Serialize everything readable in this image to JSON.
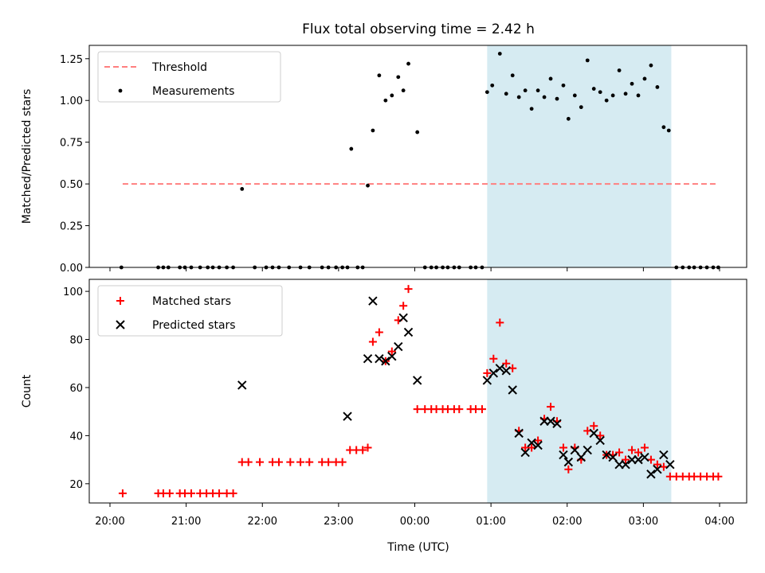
{
  "title": "Flux total observing time = 2.42 h",
  "xlabel": "Time (UTC)",
  "x_ticks": [
    "20:00",
    "21:00",
    "22:00",
    "23:00",
    "00:00",
    "01:00",
    "02:00",
    "03:00",
    "04:00"
  ],
  "colors": {
    "threshold": "#ff7f7f",
    "measurements": "#000000",
    "matched": "#ff0000",
    "predicted": "#000000",
    "shade": "#add8e6"
  },
  "chart_data": [
    {
      "type": "scatter",
      "ylabel": "Matched/Predicted stars",
      "ylim": [
        0,
        1.33
      ],
      "yticks": [
        "0.00",
        "0.25",
        "0.50",
        "0.75",
        "1.00",
        "1.25"
      ],
      "shaded_interval": [
        "00:57",
        "03:22"
      ],
      "legend": {
        "placement": "upper-left",
        "entries": [
          "Threshold",
          "Measurements"
        ]
      },
      "threshold": {
        "name": "Threshold",
        "value": 0.5,
        "x_range": [
          "20:10",
          "03:59"
        ]
      },
      "series": [
        {
          "name": "Measurements",
          "points": [
            [
              "20:09",
              0
            ],
            [
              "20:38",
              0
            ],
            [
              "20:42",
              0
            ],
            [
              "20:46",
              0
            ],
            [
              "20:55",
              0
            ],
            [
              "20:59",
              0
            ],
            [
              "21:04",
              0
            ],
            [
              "21:11",
              0
            ],
            [
              "21:17",
              0
            ],
            [
              "21:21",
              0
            ],
            [
              "21:26",
              0
            ],
            [
              "21:32",
              0
            ],
            [
              "21:37",
              0
            ],
            [
              "21:44",
              0.47
            ],
            [
              "21:54",
              0
            ],
            [
              "22:03",
              0
            ],
            [
              "22:08",
              0
            ],
            [
              "22:13",
              0
            ],
            [
              "22:21",
              0
            ],
            [
              "22:30",
              0
            ],
            [
              "22:37",
              0
            ],
            [
              "22:47",
              0
            ],
            [
              "22:52",
              0
            ],
            [
              "22:58",
              0
            ],
            [
              "23:03",
              0
            ],
            [
              "23:07",
              0
            ],
            [
              "23:10",
              0.71
            ],
            [
              "23:15",
              0
            ],
            [
              "23:19",
              0
            ],
            [
              "23:23",
              0.49
            ],
            [
              "23:27",
              0.82
            ],
            [
              "23:32",
              1.15
            ],
            [
              "23:37",
              1.0
            ],
            [
              "23:42",
              1.03
            ],
            [
              "23:47",
              1.14
            ],
            [
              "23:51",
              1.06
            ],
            [
              "23:55",
              1.22
            ],
            [
              "00:02",
              0.81
            ],
            [
              "00:08",
              0
            ],
            [
              "00:13",
              0
            ],
            [
              "00:17",
              0
            ],
            [
              "00:22",
              0
            ],
            [
              "00:26",
              0
            ],
            [
              "00:31",
              0
            ],
            [
              "00:35",
              0
            ],
            [
              "00:44",
              0
            ],
            [
              "00:48",
              0
            ],
            [
              "00:53",
              0
            ],
            [
              "00:57",
              1.05
            ],
            [
              "01:01",
              1.09
            ],
            [
              "01:07",
              1.28
            ],
            [
              "01:12",
              1.04
            ],
            [
              "01:17",
              1.15
            ],
            [
              "01:22",
              1.02
            ],
            [
              "01:27",
              1.06
            ],
            [
              "01:32",
              0.95
            ],
            [
              "01:37",
              1.06
            ],
            [
              "01:42",
              1.02
            ],
            [
              "01:47",
              1.13
            ],
            [
              "01:52",
              1.01
            ],
            [
              "01:57",
              1.09
            ],
            [
              "02:01",
              0.89
            ],
            [
              "02:06",
              1.03
            ],
            [
              "02:11",
              0.96
            ],
            [
              "02:16",
              1.24
            ],
            [
              "02:21",
              1.07
            ],
            [
              "02:26",
              1.05
            ],
            [
              "02:31",
              1.0
            ],
            [
              "02:36",
              1.03
            ],
            [
              "02:41",
              1.18
            ],
            [
              "02:46",
              1.04
            ],
            [
              "02:51",
              1.1
            ],
            [
              "02:56",
              1.03
            ],
            [
              "03:01",
              1.13
            ],
            [
              "03:06",
              1.21
            ],
            [
              "03:11",
              1.08
            ],
            [
              "03:16",
              0.84
            ],
            [
              "03:20",
              0.82
            ],
            [
              "03:26",
              0
            ],
            [
              "03:31",
              0
            ],
            [
              "03:36",
              0
            ],
            [
              "03:40",
              0
            ],
            [
              "03:45",
              0
            ],
            [
              "03:50",
              0
            ],
            [
              "03:55",
              0
            ],
            [
              "03:59",
              0
            ]
          ]
        }
      ]
    },
    {
      "type": "scatter",
      "ylabel": "Count",
      "ylim": [
        12,
        105
      ],
      "yticks": [
        "20",
        "40",
        "60",
        "80",
        "100"
      ],
      "shaded_interval": [
        "00:57",
        "03:22"
      ],
      "legend": {
        "placement": "upper-left",
        "entries": [
          "Matched stars",
          "Predicted stars"
        ]
      },
      "series": [
        {
          "name": "Matched stars",
          "marker": "plus",
          "points": [
            [
              "20:10",
              16
            ],
            [
              "20:38",
              16
            ],
            [
              "20:42",
              16
            ],
            [
              "20:47",
              16
            ],
            [
              "20:55",
              16
            ],
            [
              "20:59",
              16
            ],
            [
              "21:04",
              16
            ],
            [
              "21:11",
              16
            ],
            [
              "21:16",
              16
            ],
            [
              "21:21",
              16
            ],
            [
              "21:26",
              16
            ],
            [
              "21:32",
              16
            ],
            [
              "21:37",
              16
            ],
            [
              "21:44",
              29
            ],
            [
              "21:49",
              29
            ],
            [
              "21:58",
              29
            ],
            [
              "22:08",
              29
            ],
            [
              "22:13",
              29
            ],
            [
              "22:22",
              29
            ],
            [
              "22:30",
              29
            ],
            [
              "22:37",
              29
            ],
            [
              "22:47",
              29
            ],
            [
              "22:52",
              29
            ],
            [
              "22:58",
              29
            ],
            [
              "23:03",
              29
            ],
            [
              "23:09",
              34
            ],
            [
              "23:14",
              34
            ],
            [
              "23:19",
              34
            ],
            [
              "23:23",
              35
            ],
            [
              "23:27",
              79
            ],
            [
              "23:32",
              83
            ],
            [
              "23:37",
              71
            ],
            [
              "23:42",
              75
            ],
            [
              "23:47",
              88
            ],
            [
              "23:51",
              94
            ],
            [
              "23:55",
              101
            ],
            [
              "00:02",
              51
            ],
            [
              "00:08",
              51
            ],
            [
              "00:13",
              51
            ],
            [
              "00:17",
              51
            ],
            [
              "00:22",
              51
            ],
            [
              "00:26",
              51
            ],
            [
              "00:31",
              51
            ],
            [
              "00:35",
              51
            ],
            [
              "00:44",
              51
            ],
            [
              "00:48",
              51
            ],
            [
              "00:53",
              51
            ],
            [
              "00:57",
              66
            ],
            [
              "01:02",
              72
            ],
            [
              "01:07",
              87
            ],
            [
              "01:12",
              70
            ],
            [
              "01:17",
              68
            ],
            [
              "01:22",
              42
            ],
            [
              "01:27",
              35
            ],
            [
              "01:32",
              35
            ],
            [
              "01:37",
              38
            ],
            [
              "01:42",
              47
            ],
            [
              "01:47",
              52
            ],
            [
              "01:52",
              46
            ],
            [
              "01:57",
              35
            ],
            [
              "02:01",
              26
            ],
            [
              "02:06",
              35
            ],
            [
              "02:11",
              30
            ],
            [
              "02:16",
              42
            ],
            [
              "02:21",
              44
            ],
            [
              "02:26",
              40
            ],
            [
              "02:31",
              32
            ],
            [
              "02:36",
              32
            ],
            [
              "02:41",
              33
            ],
            [
              "02:46",
              30
            ],
            [
              "02:51",
              34
            ],
            [
              "02:56",
              33
            ],
            [
              "03:01",
              35
            ],
            [
              "03:06",
              30
            ],
            [
              "03:11",
              28
            ],
            [
              "03:16",
              27
            ],
            [
              "03:21",
              23
            ],
            [
              "03:26",
              23
            ],
            [
              "03:31",
              23
            ],
            [
              "03:36",
              23
            ],
            [
              "03:40",
              23
            ],
            [
              "03:45",
              23
            ],
            [
              "03:50",
              23
            ],
            [
              "03:55",
              23
            ],
            [
              "03:59",
              23
            ]
          ]
        },
        {
          "name": "Predicted stars",
          "marker": "x",
          "points": [
            [
              "21:44",
              61
            ],
            [
              "23:07",
              48
            ],
            [
              "23:23",
              72
            ],
            [
              "23:27",
              96
            ],
            [
              "23:32",
              72
            ],
            [
              "23:37",
              71
            ],
            [
              "23:42",
              73
            ],
            [
              "23:47",
              77
            ],
            [
              "23:51",
              89
            ],
            [
              "23:55",
              83
            ],
            [
              "00:02",
              63
            ],
            [
              "00:57",
              63
            ],
            [
              "01:02",
              66
            ],
            [
              "01:07",
              68
            ],
            [
              "01:12",
              67
            ],
            [
              "01:17",
              59
            ],
            [
              "01:22",
              41
            ],
            [
              "01:27",
              33
            ],
            [
              "01:32",
              37
            ],
            [
              "01:37",
              36
            ],
            [
              "01:42",
              46
            ],
            [
              "01:47",
              46
            ],
            [
              "01:52",
              45
            ],
            [
              "01:57",
              32
            ],
            [
              "02:01",
              29
            ],
            [
              "02:06",
              34
            ],
            [
              "02:11",
              31
            ],
            [
              "02:16",
              34
            ],
            [
              "02:21",
              41
            ],
            [
              "02:26",
              38
            ],
            [
              "02:31",
              32
            ],
            [
              "02:36",
              31
            ],
            [
              "02:41",
              28
            ],
            [
              "02:46",
              28
            ],
            [
              "02:51",
              30
            ],
            [
              "02:56",
              30
            ],
            [
              "03:01",
              31
            ],
            [
              "03:06",
              24
            ],
            [
              "03:11",
              26
            ],
            [
              "03:16",
              32
            ],
            [
              "03:21",
              28
            ]
          ]
        }
      ]
    }
  ]
}
